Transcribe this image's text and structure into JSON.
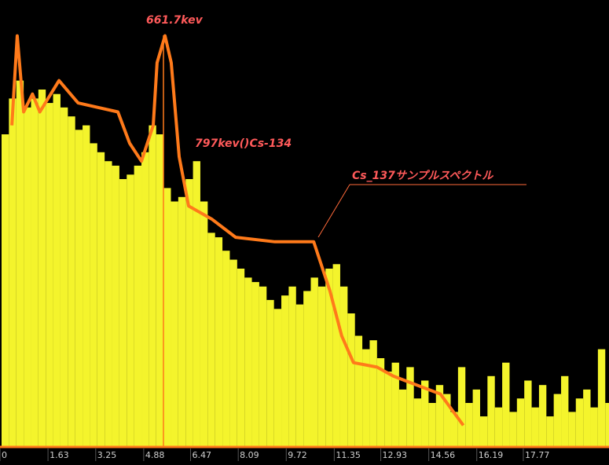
{
  "chart_data": {
    "type": "bar",
    "color": "#f4f42c",
    "x": [
      0,
      0.25,
      0.5,
      0.75,
      1,
      1.25,
      1.5,
      1.75,
      2,
      2.25,
      2.5,
      2.75,
      3,
      3.25,
      3.5,
      3.75,
      4,
      4.25,
      4.5,
      4.75,
      5,
      5.25,
      5.5,
      5.75,
      6,
      6.25,
      6.5,
      6.75,
      7,
      7.25,
      7.5,
      7.75,
      8,
      8.25,
      8.5,
      8.75,
      9,
      9.25,
      9.5,
      9.75,
      10,
      10.25,
      10.5,
      10.75,
      11,
      11.25,
      11.5,
      11.75,
      12,
      12.25,
      12.5,
      12.75,
      13,
      13.25,
      13.5,
      13.75,
      14,
      14.25,
      14.5,
      14.75,
      15,
      15.25,
      15.5,
      15.75,
      16,
      16.25,
      16.5,
      16.75,
      17,
      17.25,
      17.5,
      17.75,
      18,
      18.25,
      18.5,
      18.75,
      19,
      19.25,
      19.5,
      19.75,
      20,
      20.25,
      20.5
    ],
    "values": [
      70,
      78,
      82,
      76,
      78,
      80,
      77,
      79,
      76,
      74,
      71,
      72,
      68,
      66,
      64,
      63,
      60,
      61,
      63,
      66,
      72,
      70,
      58,
      55,
      56,
      60,
      64,
      55,
      48,
      47,
      44,
      42,
      40,
      38,
      37,
      36,
      33,
      31,
      34,
      36,
      32,
      35,
      38,
      36,
      40,
      41,
      36,
      30,
      25,
      22,
      24,
      20,
      17,
      19,
      13,
      18,
      11,
      15,
      10,
      14,
      12,
      8,
      18,
      10,
      13,
      7,
      16,
      9,
      19,
      8,
      11,
      15,
      9,
      14,
      7,
      12,
      16,
      8,
      11,
      13,
      9,
      22,
      10
    ],
    "overlay": {
      "type": "line",
      "color": "#ff7a1a",
      "x": [
        0.35,
        0.53,
        0.75,
        1.05,
        1.3,
        1.95,
        2.6,
        3.95,
        4.35,
        4.75,
        5.15,
        5.28,
        5.55,
        5.76,
        6.03,
        6.35,
        7.15,
        7.95,
        9.28,
        10.6,
        11.15,
        11.55,
        11.95,
        12.75,
        13.3,
        14.1,
        14.9,
        15.68
      ],
      "values": [
        72,
        92,
        75,
        79,
        75,
        82,
        77,
        75,
        68,
        64,
        72,
        86,
        92,
        86,
        65,
        54,
        51,
        47,
        46,
        46,
        35,
        25,
        19,
        18,
        16,
        14,
        12,
        5
      ]
    },
    "xlim": [
      0,
      20.6
    ],
    "ylim": [
      0,
      100
    ],
    "xticks": [
      0,
      1.63,
      3.25,
      4.88,
      6.47,
      8.09,
      9.72,
      11.35,
      12.93,
      14.56,
      16.19,
      17.77
    ],
    "annotations": [
      "661.7kev",
      "797kev()Cs-134",
      "Cs_137サンプルスペクトル"
    ]
  }
}
